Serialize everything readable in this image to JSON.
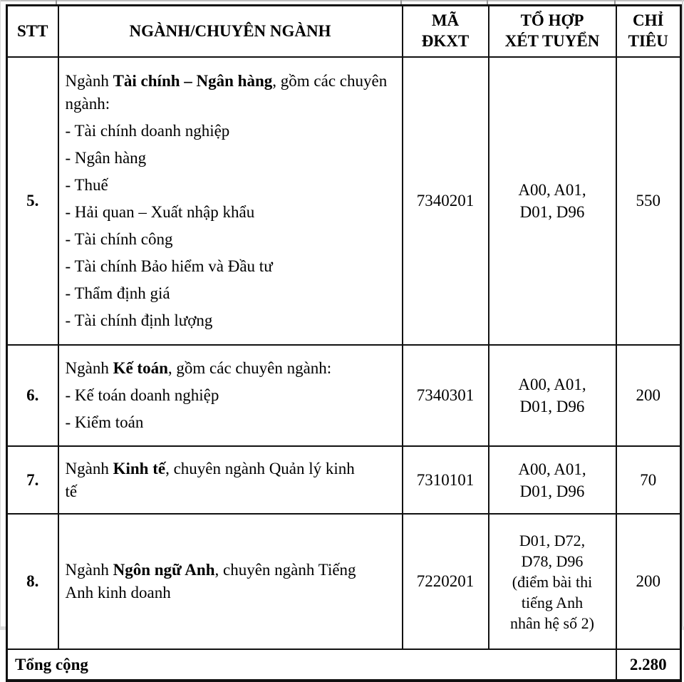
{
  "colors": {
    "text": "#000000",
    "border": "#000000",
    "background": "#ffffff"
  },
  "table": {
    "columns": [
      "STT",
      "NGÀNH/CHUYÊN NGÀNH",
      "MÃ\nĐKXT",
      "TỔ HỢP\nXÉT TUYỂN",
      "CHỈ\nTIÊU"
    ],
    "rows": [
      {
        "stt": "5.",
        "major": {
          "prefix": "Ngành ",
          "bold": "Tài chính – Ngân hàng",
          "suffix": ", gồm các chuyên ngành:"
        },
        "specializations": [
          "- Tài chính doanh nghiệp",
          "- Ngân hàng",
          "- Thuế",
          "- Hải quan – Xuất nhập khẩu",
          "- Tài chính công",
          "- Tài chính Bảo hiểm và Đầu tư",
          "- Thẩm định giá",
          "- Tài chính định lượng"
        ],
        "code": "7340201",
        "combination": "A00, A01,\nD01, D96",
        "quota": "550"
      },
      {
        "stt": "6.",
        "major": {
          "prefix": "Ngành ",
          "bold": "Kế toán",
          "suffix": ", gồm các chuyên ngành:"
        },
        "specializations": [
          "- Kế toán doanh nghiệp",
          "- Kiểm toán"
        ],
        "code": "7340301",
        "combination": "A00, A01,\nD01, D96",
        "quota": "200"
      },
      {
        "stt": "7.",
        "major": {
          "prefix": "Ngành ",
          "bold": "Kinh tế",
          "suffix": ", chuyên ngành Quản lý kinh tế"
        },
        "specializations": [],
        "code": "7310101",
        "combination": "A00, A01,\nD01, D96",
        "quota": "70"
      },
      {
        "stt": "8.",
        "major": {
          "prefix": "Ngành ",
          "bold": "Ngôn ngữ Anh",
          "suffix": ", chuyên ngành Tiếng Anh kinh doanh"
        },
        "specializations": [],
        "code": "7220201",
        "combination": "D01, D72,\nD78, D96\n(điểm bài thi\ntiếng Anh\nnhân hệ số 2)",
        "quota": "200"
      }
    ],
    "footer": {
      "label": "Tổng cộng",
      "total": "2.280"
    }
  }
}
